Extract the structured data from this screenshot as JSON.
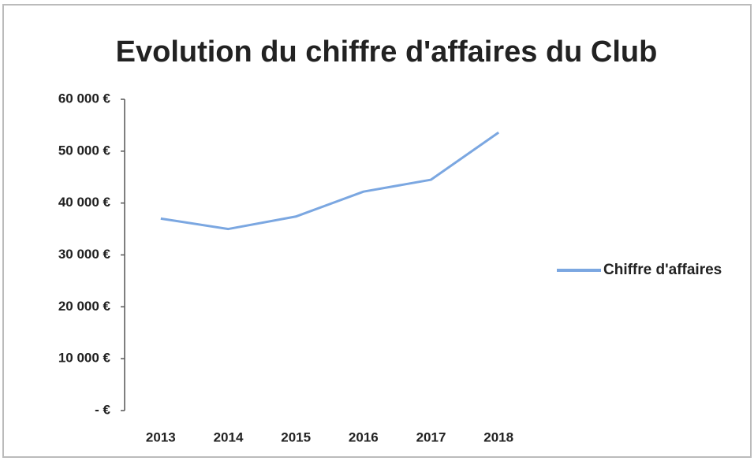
{
  "chart_data": {
    "type": "line",
    "title": "Evolution du chiffre d'affaires du Club",
    "categories": [
      "2013",
      "2014",
      "2015",
      "2016",
      "2017",
      "2018"
    ],
    "series": [
      {
        "name": "Chiffre d'affaires",
        "color": "#7ba7e1",
        "values": [
          37000,
          35000,
          37400,
          42200,
          44500,
          53600
        ]
      }
    ],
    "ylim": [
      0,
      60000
    ],
    "yticks": [
      {
        "value": 0,
        "label": "-   €"
      },
      {
        "value": 10000,
        "label": "10 000 €"
      },
      {
        "value": 20000,
        "label": "20 000 €"
      },
      {
        "value": 30000,
        "label": "30 000 €"
      },
      {
        "value": 40000,
        "label": "40 000 €"
      },
      {
        "value": 50000,
        "label": "50 000 €"
      },
      {
        "value": 60000,
        "label": "60 000 €"
      }
    ],
    "grid": false,
    "legend": "right"
  }
}
